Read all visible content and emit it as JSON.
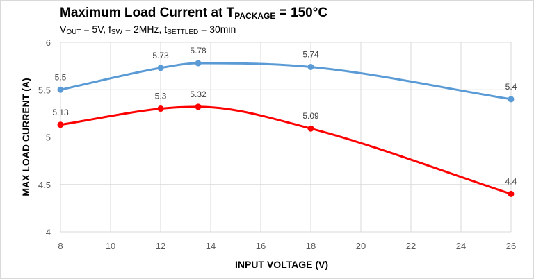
{
  "chart_data": {
    "type": "line",
    "title": {
      "prefix": "Maximum Load Current at T",
      "sub": "PACKAGE",
      "suffix": " = 150°C"
    },
    "subtitle": [
      {
        "text": "V"
      },
      {
        "sub": "OUT"
      },
      {
        "text": " = 5V, f"
      },
      {
        "sub": "SW"
      },
      {
        "text": " = 2MHz, t"
      },
      {
        "sub": "SETTLED"
      },
      {
        "text": " = 30min"
      }
    ],
    "xlabel": "INPUT VOLTAGE (V)",
    "ylabel": "MAX LOAD CURRENT (A)",
    "xlim": [
      8,
      26
    ],
    "ylim": [
      4,
      6
    ],
    "xticks": [
      8,
      10,
      12,
      14,
      16,
      18,
      20,
      22,
      24,
      26
    ],
    "yticks": [
      "4",
      "4.5",
      "5",
      "5.5",
      "6"
    ],
    "grid": "vertical and horizontal",
    "legend": "none",
    "series": [
      {
        "color": "#5b9bd5",
        "smooth": true,
        "points": [
          {
            "x": 8,
            "y": 5.5,
            "label": "5.5"
          },
          {
            "x": 12,
            "y": 5.73,
            "label": "5.73"
          },
          {
            "x": 13.5,
            "y": 5.78,
            "label": "5.78"
          },
          {
            "x": 18,
            "y": 5.74,
            "label": "5.74"
          },
          {
            "x": 26,
            "y": 5.4,
            "label": "5.4"
          }
        ]
      },
      {
        "color": "#ff0000",
        "smooth": true,
        "points": [
          {
            "x": 8,
            "y": 5.13,
            "label": "5.13"
          },
          {
            "x": 12,
            "y": 5.3,
            "label": "5.3"
          },
          {
            "x": 13.5,
            "y": 5.32,
            "label": "5.32"
          },
          {
            "x": 18,
            "y": 5.09,
            "label": "5.09"
          },
          {
            "x": 26,
            "y": 4.4,
            "label": "4.4"
          }
        ]
      }
    ]
  }
}
